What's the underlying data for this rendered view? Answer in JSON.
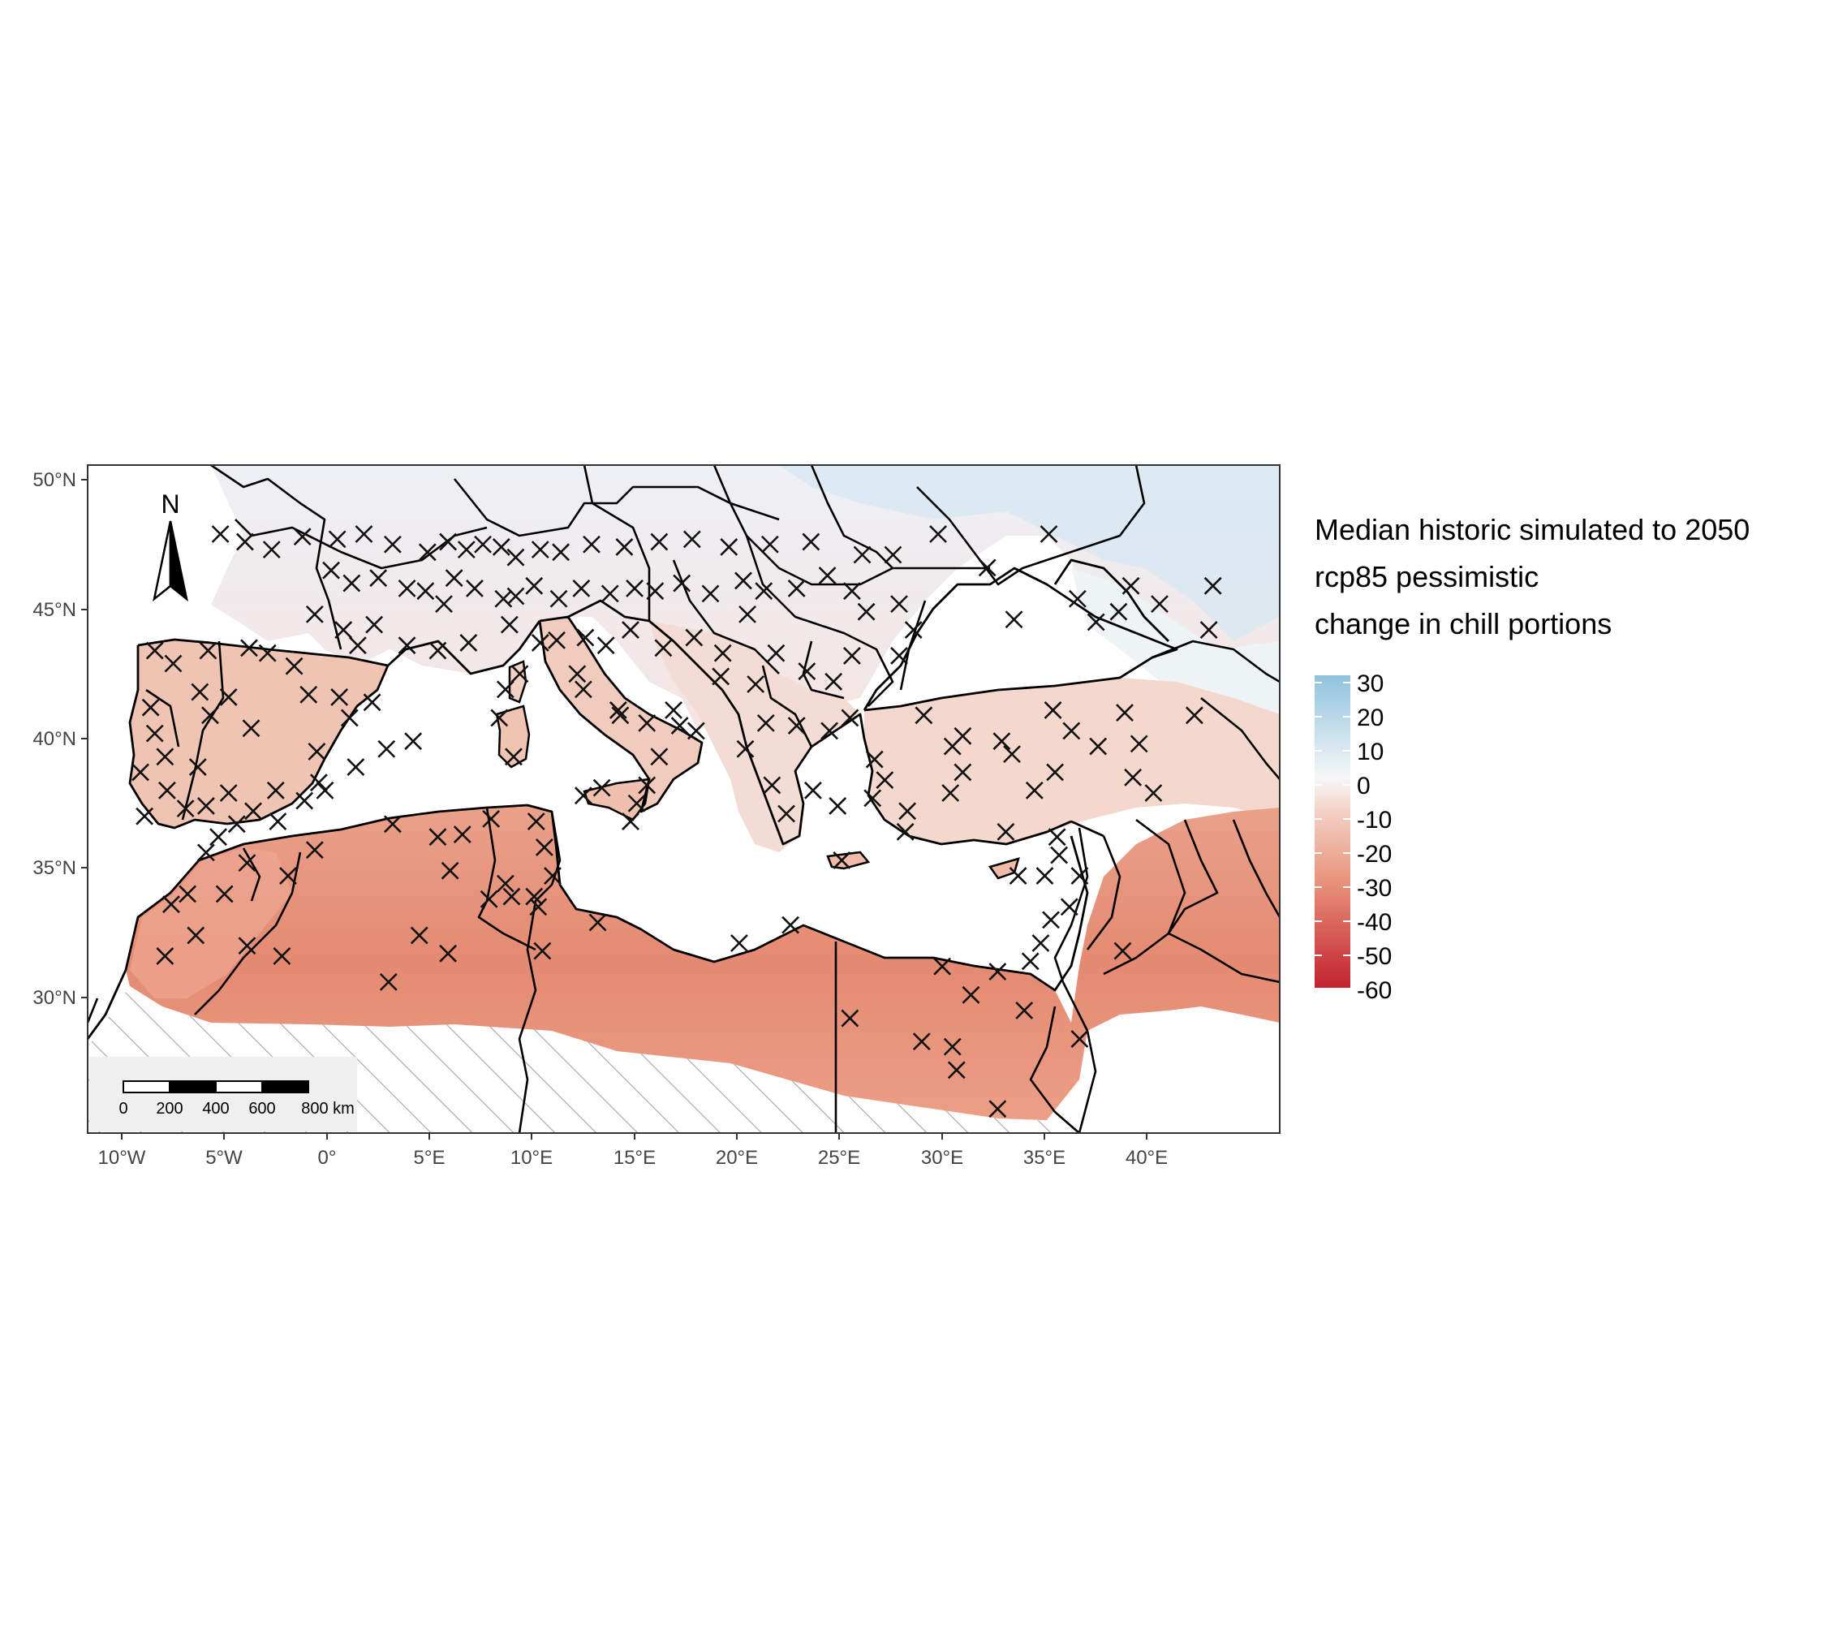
{
  "map": {
    "lat_labels": [
      "50°N",
      "45°N",
      "40°N",
      "35°N",
      "30°N"
    ],
    "lon_labels": [
      "10°W",
      "5°W",
      "0°",
      "5°E",
      "10°E",
      "15°E",
      "20°E",
      "25°E",
      "30°E",
      "35°E",
      "40°E"
    ],
    "north_label": "N",
    "scale_bar": {
      "ticks": [
        "0",
        "200",
        "400",
        "600",
        "800 km"
      ]
    }
  },
  "legend": {
    "title_lines": [
      "Median historic simulated to 2050",
      "rcp85 pessimistic",
      "change in chill portions"
    ],
    "ticks": [
      "30",
      "20",
      "10",
      "0",
      "-10",
      "-20",
      "-30",
      "-40",
      "-50",
      "-60"
    ],
    "colors": {
      "high": "#8fc3de",
      "zero": "#f7f7f7",
      "mid": "#e8937a",
      "low": "#c2222f"
    }
  },
  "colors": {
    "land_north": "#f4eaea",
    "land_iberia": "#f1c4b4",
    "land_africa": "#e8957d",
    "land_africa_deep": "#e07b66",
    "cold_east": "#dce9f2",
    "anatolia": "#f3d5cc",
    "hatch": "#aaaaaa",
    "marker": "#111111"
  },
  "stations": [
    [
      -5.2,
      47.9
    ],
    [
      -4.0,
      47.6
    ],
    [
      -2.7,
      47.3
    ],
    [
      -1.2,
      47.8
    ],
    [
      0.5,
      47.7
    ],
    [
      1.8,
      47.9
    ],
    [
      3.2,
      47.5
    ],
    [
      4.9,
      47.2
    ],
    [
      5.9,
      47.6
    ],
    [
      6.8,
      47.3
    ],
    [
      7.6,
      47.5
    ],
    [
      8.5,
      47.4
    ],
    [
      9.2,
      47.0
    ],
    [
      10.4,
      47.3
    ],
    [
      11.4,
      47.2
    ],
    [
      12.9,
      47.5
    ],
    [
      14.5,
      47.4
    ],
    [
      16.2,
      47.6
    ],
    [
      17.8,
      47.7
    ],
    [
      19.6,
      47.4
    ],
    [
      21.6,
      47.5
    ],
    [
      23.6,
      47.6
    ],
    [
      26.1,
      47.1
    ],
    [
      27.6,
      47.1
    ],
    [
      29.8,
      47.9
    ],
    [
      35.2,
      47.9
    ],
    [
      0.2,
      46.5
    ],
    [
      1.2,
      46.0
    ],
    [
      2.5,
      46.2
    ],
    [
      3.9,
      45.8
    ],
    [
      4.8,
      45.7
    ],
    [
      5.7,
      45.2
    ],
    [
      6.2,
      46.2
    ],
    [
      7.2,
      45.8
    ],
    [
      8.6,
      45.4
    ],
    [
      9.2,
      45.5
    ],
    [
      10.1,
      45.9
    ],
    [
      11.3,
      45.4
    ],
    [
      12.4,
      45.8
    ],
    [
      13.8,
      45.6
    ],
    [
      15.0,
      45.8
    ],
    [
      16.0,
      45.7
    ],
    [
      17.3,
      46.0
    ],
    [
      18.7,
      45.6
    ],
    [
      20.3,
      46.1
    ],
    [
      21.3,
      45.7
    ],
    [
      22.9,
      45.8
    ],
    [
      24.4,
      46.3
    ],
    [
      25.6,
      45.7
    ],
    [
      26.3,
      44.9
    ],
    [
      27.9,
      45.2
    ],
    [
      32.2,
      46.6
    ],
    [
      36.6,
      45.4
    ],
    [
      37.5,
      44.5
    ],
    [
      39.2,
      45.9
    ],
    [
      40.6,
      45.2
    ],
    [
      43.2,
      45.9
    ],
    [
      43.0,
      44.2
    ],
    [
      33.5,
      44.6
    ],
    [
      38.6,
      44.9
    ],
    [
      -0.6,
      44.8
    ],
    [
      0.8,
      44.2
    ],
    [
      1.5,
      43.6
    ],
    [
      2.3,
      44.4
    ],
    [
      3.9,
      43.6
    ],
    [
      5.4,
      43.4
    ],
    [
      6.9,
      43.7
    ],
    [
      8.9,
      44.4
    ],
    [
      10.4,
      43.7
    ],
    [
      11.2,
      43.8
    ],
    [
      12.6,
      43.9
    ],
    [
      13.6,
      43.6
    ],
    [
      14.8,
      44.2
    ],
    [
      16.4,
      43.5
    ],
    [
      17.9,
      43.9
    ],
    [
      19.3,
      43.3
    ],
    [
      20.5,
      44.8
    ],
    [
      21.9,
      43.3
    ],
    [
      23.4,
      42.6
    ],
    [
      24.7,
      42.2
    ],
    [
      25.6,
      43.2
    ],
    [
      27.9,
      43.2
    ],
    [
      28.6,
      44.2
    ],
    [
      19.2,
      42.4
    ],
    [
      20.9,
      42.1
    ],
    [
      -8.4,
      43.4
    ],
    [
      -7.5,
      42.9
    ],
    [
      -5.8,
      43.4
    ],
    [
      -3.8,
      43.5
    ],
    [
      -2.9,
      43.3
    ],
    [
      -1.6,
      42.8
    ],
    [
      -0.9,
      41.7
    ],
    [
      0.6,
      41.6
    ],
    [
      2.2,
      41.4
    ],
    [
      1.1,
      40.8
    ],
    [
      -3.7,
      40.4
    ],
    [
      -4.8,
      41.6
    ],
    [
      -5.7,
      40.9
    ],
    [
      -6.2,
      41.8
    ],
    [
      -8.6,
      41.2
    ],
    [
      -8.4,
      40.2
    ],
    [
      -7.9,
      39.3
    ],
    [
      -9.1,
      38.7
    ],
    [
      -7.8,
      38.0
    ],
    [
      -6.3,
      38.9
    ],
    [
      -4.8,
      37.9
    ],
    [
      -3.6,
      37.2
    ],
    [
      -2.5,
      38.0
    ],
    [
      -1.1,
      37.6
    ],
    [
      -0.5,
      39.5
    ],
    [
      -5.9,
      37.4
    ],
    [
      -6.9,
      37.3
    ],
    [
      -8.9,
      37.0
    ],
    [
      -5.3,
      36.2
    ],
    [
      -4.4,
      36.7
    ],
    [
      -2.4,
      36.8
    ],
    [
      -0.4,
      38.3
    ],
    [
      -0.1,
      38.0
    ],
    [
      2.9,
      39.6
    ],
    [
      4.2,
      39.9
    ],
    [
      1.4,
      38.9
    ],
    [
      8.4,
      40.8
    ],
    [
      9.1,
      39.3
    ],
    [
      9.4,
      42.5
    ],
    [
      8.7,
      41.9
    ],
    [
      12.5,
      41.9
    ],
    [
      14.3,
      40.9
    ],
    [
      15.6,
      40.6
    ],
    [
      16.9,
      41.1
    ],
    [
      18.0,
      40.3
    ],
    [
      16.2,
      39.3
    ],
    [
      15.6,
      38.2
    ],
    [
      13.4,
      38.1
    ],
    [
      15.1,
      37.5
    ],
    [
      14.8,
      36.8
    ],
    [
      12.5,
      37.8
    ],
    [
      14.2,
      41.1
    ],
    [
      17.2,
      40.5
    ],
    [
      12.2,
      42.5
    ],
    [
      20.4,
      39.6
    ],
    [
      21.4,
      40.6
    ],
    [
      22.9,
      40.5
    ],
    [
      23.7,
      38.0
    ],
    [
      22.4,
      37.1
    ],
    [
      21.7,
      38.2
    ],
    [
      24.9,
      37.4
    ],
    [
      25.5,
      40.8
    ],
    [
      25.1,
      35.3
    ],
    [
      26.6,
      37.7
    ],
    [
      27.2,
      38.4
    ],
    [
      28.3,
      37.2
    ],
    [
      29.1,
      40.9
    ],
    [
      30.5,
      39.7
    ],
    [
      31.0,
      40.1
    ],
    [
      32.9,
      39.9
    ],
    [
      33.4,
      39.4
    ],
    [
      35.5,
      38.7
    ],
    [
      36.3,
      40.3
    ],
    [
      35.4,
      41.1
    ],
    [
      37.6,
      39.7
    ],
    [
      38.9,
      41.0
    ],
    [
      39.6,
      39.8
    ],
    [
      39.3,
      38.5
    ],
    [
      40.3,
      37.9
    ],
    [
      42.3,
      40.9
    ],
    [
      34.5,
      38.0
    ],
    [
      33.1,
      36.4
    ],
    [
      35.6,
      36.2
    ],
    [
      31.0,
      38.7
    ],
    [
      28.2,
      36.4
    ],
    [
      26.7,
      39.2
    ],
    [
      30.4,
      37.9
    ],
    [
      24.5,
      40.3
    ],
    [
      35.0,
      34.7
    ],
    [
      33.7,
      34.7
    ],
    [
      -6.8,
      34.0
    ],
    [
      -7.6,
      33.6
    ],
    [
      -5.0,
      34.0
    ],
    [
      -5.9,
      35.6
    ],
    [
      -3.9,
      35.2
    ],
    [
      -1.9,
      34.7
    ],
    [
      -0.6,
      35.7
    ],
    [
      3.2,
      36.7
    ],
    [
      5.4,
      36.2
    ],
    [
      6.6,
      36.3
    ],
    [
      8.0,
      36.9
    ],
    [
      10.2,
      36.8
    ],
    [
      10.6,
      35.8
    ],
    [
      8.7,
      34.4
    ],
    [
      9.0,
      33.9
    ],
    [
      10.1,
      33.9
    ],
    [
      10.3,
      33.5
    ],
    [
      7.9,
      33.8
    ],
    [
      6.0,
      34.9
    ],
    [
      4.5,
      32.4
    ],
    [
      5.9,
      31.7
    ],
    [
      3.0,
      30.6
    ],
    [
      -3.9,
      32.0
    ],
    [
      -7.9,
      31.6
    ],
    [
      -6.4,
      32.4
    ],
    [
      -2.2,
      31.6
    ],
    [
      10.5,
      31.8
    ],
    [
      13.2,
      32.9
    ],
    [
      20.1,
      32.1
    ],
    [
      22.6,
      32.8
    ],
    [
      25.5,
      29.2
    ],
    [
      29.0,
      28.3
    ],
    [
      30.5,
      28.1
    ],
    [
      30.7,
      27.2
    ],
    [
      31.4,
      30.1
    ],
    [
      32.7,
      31.0
    ],
    [
      32.7,
      25.7
    ],
    [
      34.3,
      31.4
    ],
    [
      34.8,
      32.1
    ],
    [
      35.3,
      33.0
    ],
    [
      35.7,
      35.5
    ],
    [
      36.2,
      33.5
    ],
    [
      36.7,
      34.7
    ],
    [
      36.7,
      28.4
    ],
    [
      38.8,
      31.8
    ],
    [
      34.0,
      29.5
    ],
    [
      30.0,
      31.2
    ],
    [
      11.0,
      34.7
    ]
  ]
}
